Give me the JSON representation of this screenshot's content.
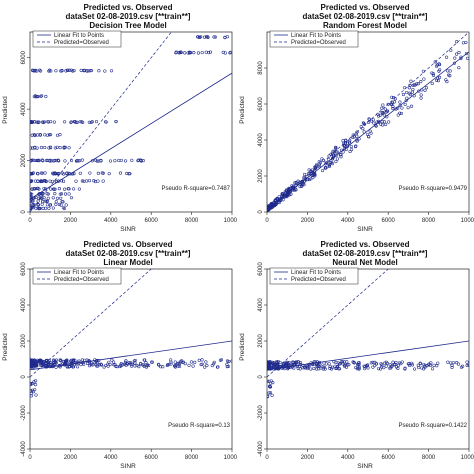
{
  "chart_data": [
    {
      "type": "scatter",
      "title": "Predicted vs. Observed",
      "subtitle": "dataSet 02-08-2019.csv [**train**]",
      "model": "Decision Tree Model",
      "xlabel": "SINR",
      "ylabel": "Predicted",
      "xlim": [
        0,
        10000
      ],
      "ylim": [
        0,
        7000
      ],
      "xticks": [
        0,
        2000,
        4000,
        6000,
        8000,
        10000
      ],
      "yticks": [
        0,
        2000,
        4000,
        6000
      ],
      "legend": {
        "position": "top-left",
        "entries": [
          "Linear Fit to Points",
          "Predicted=Observed"
        ]
      },
      "pseudo_r_square": "Pseudo R-square=0.7487",
      "fit_line": [
        [
          0,
          500
        ],
        [
          10000,
          5400
        ]
      ],
      "tree_levels": [
        {
          "y": 150,
          "x": [
            0,
            2000
          ]
        },
        {
          "y": 280,
          "x": [
            0,
            1800
          ]
        },
        {
          "y": 410,
          "x": [
            0,
            1700
          ]
        },
        {
          "y": 550,
          "x": [
            0,
            2200
          ]
        },
        {
          "y": 700,
          "x": [
            0,
            2000
          ]
        },
        {
          "y": 900,
          "x": [
            100,
            2500
          ]
        },
        {
          "y": 1200,
          "x": [
            0,
            4200
          ]
        },
        {
          "y": 1500,
          "x": [
            0,
            5200
          ]
        },
        {
          "y": 2000,
          "x": [
            0,
            5800
          ]
        },
        {
          "y": 2500,
          "x": [
            0,
            2000
          ]
        },
        {
          "y": 3000,
          "x": [
            0,
            1500
          ]
        },
        {
          "y": 3500,
          "x": [
            0,
            4800
          ]
        },
        {
          "y": 4500,
          "x": [
            200,
            1200
          ]
        },
        {
          "y": 5500,
          "x": [
            100,
            4200
          ]
        },
        {
          "y": 6200,
          "x": [
            7200,
            10000
          ]
        },
        {
          "y": 6800,
          "x": [
            8300,
            10000
          ]
        }
      ]
    },
    {
      "type": "scatter",
      "title": "Predicted vs. Observed",
      "subtitle": "dataSet 02-08-2019.csv [**train**]",
      "model": "Random Forest Model",
      "xlabel": "SINR",
      "ylabel": "Predicted",
      "xlim": [
        0,
        10000
      ],
      "ylim": [
        0,
        10000
      ],
      "xticks": [
        0,
        2000,
        4000,
        6000,
        8000,
        10000
      ],
      "yticks": [
        0,
        2000,
        4000,
        6000,
        8000
      ],
      "legend": {
        "position": "top-left",
        "entries": [
          "Linear Fit to Points",
          "Predicted=Observed"
        ]
      },
      "pseudo_r_square": "Pseudo R-square=0.9479",
      "fit_line": [
        [
          0,
          150
        ],
        [
          10000,
          8900
        ]
      ]
    },
    {
      "type": "scatter",
      "title": "Predicted vs. Observed",
      "subtitle": "dataSet 02-08-2019.csv [**train**]",
      "model": "Linear Model",
      "xlabel": "SINR",
      "ylabel": "Predicted",
      "xlim": [
        0,
        10000
      ],
      "ylim": [
        -4000,
        6000
      ],
      "xticks": [
        0,
        2000,
        4000,
        6000,
        8000,
        10000
      ],
      "yticks": [
        -4000,
        -2000,
        0,
        2000,
        4000,
        6000
      ],
      "legend": {
        "position": "top-left",
        "entries": [
          "Linear Fit to Points",
          "Predicted=Observed"
        ]
      },
      "pseudo_r_square": "Pseudo R-square=0.13",
      "fit_line": [
        [
          0,
          400
        ],
        [
          10000,
          2000
        ]
      ],
      "flat_cloud_level": 750
    },
    {
      "type": "scatter",
      "title": "Predicted vs. Observed",
      "subtitle": "dataSet 02-08-2019.csv [**train**]",
      "model": "Neural Net Model",
      "xlabel": "SINR",
      "ylabel": "Predicted",
      "xlim": [
        0,
        10000
      ],
      "ylim": [
        -4000,
        6000
      ],
      "xticks": [
        0,
        2000,
        4000,
        6000,
        8000,
        10000
      ],
      "yticks": [
        -4000,
        -2000,
        0,
        2000,
        4000,
        6000
      ],
      "legend": {
        "position": "top-left",
        "entries": [
          "Linear Fit to Points",
          "Predicted=Observed"
        ]
      },
      "pseudo_r_square": "Pseudo R-square=0.1422",
      "fit_line": [
        [
          0,
          400
        ],
        [
          10000,
          2000
        ]
      ],
      "flat_cloud_level": 650
    }
  ],
  "colors": {
    "points": "#1f2a8c",
    "fit": "#1f2a8c",
    "identity": "#1f2a8c",
    "axis": "#222222"
  }
}
